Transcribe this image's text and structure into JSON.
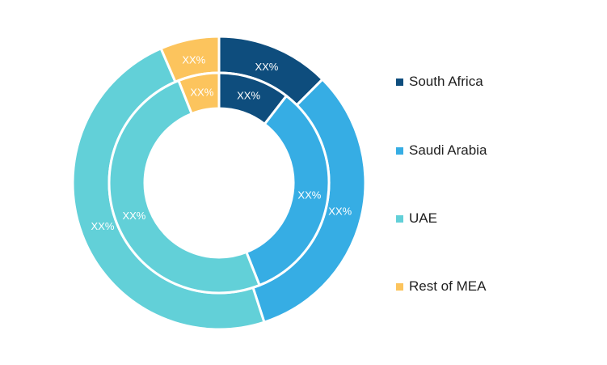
{
  "chart_data": {
    "type": "pie",
    "series": [
      {
        "name": "Outer ring",
        "values": [
          12.5,
          32.5,
          48.5,
          6.5
        ],
        "labels": [
          "XX%",
          "XX%",
          "XX%",
          "XX%"
        ]
      },
      {
        "name": "Inner ring",
        "values": [
          10.5,
          33.5,
          50,
          6
        ],
        "labels": [
          "XX%",
          "XX%",
          "XX%",
          "XX%"
        ]
      }
    ],
    "categories": [
      "South Africa",
      "Saudi Arabia",
      "UAE",
      "Rest of MEA"
    ],
    "colors": [
      "#0e4d7d",
      "#36ade4",
      "#62d0d8",
      "#fcc45d"
    ],
    "legend_position": "right"
  },
  "legend": {
    "items": [
      {
        "label": "South Africa",
        "color": "#0e4d7d"
      },
      {
        "label": "Saudi Arabia",
        "color": "#36ade4"
      },
      {
        "label": "UAE",
        "color": "#62d0d8"
      },
      {
        "label": "Rest of MEA",
        "color": "#fcc45d"
      }
    ]
  }
}
